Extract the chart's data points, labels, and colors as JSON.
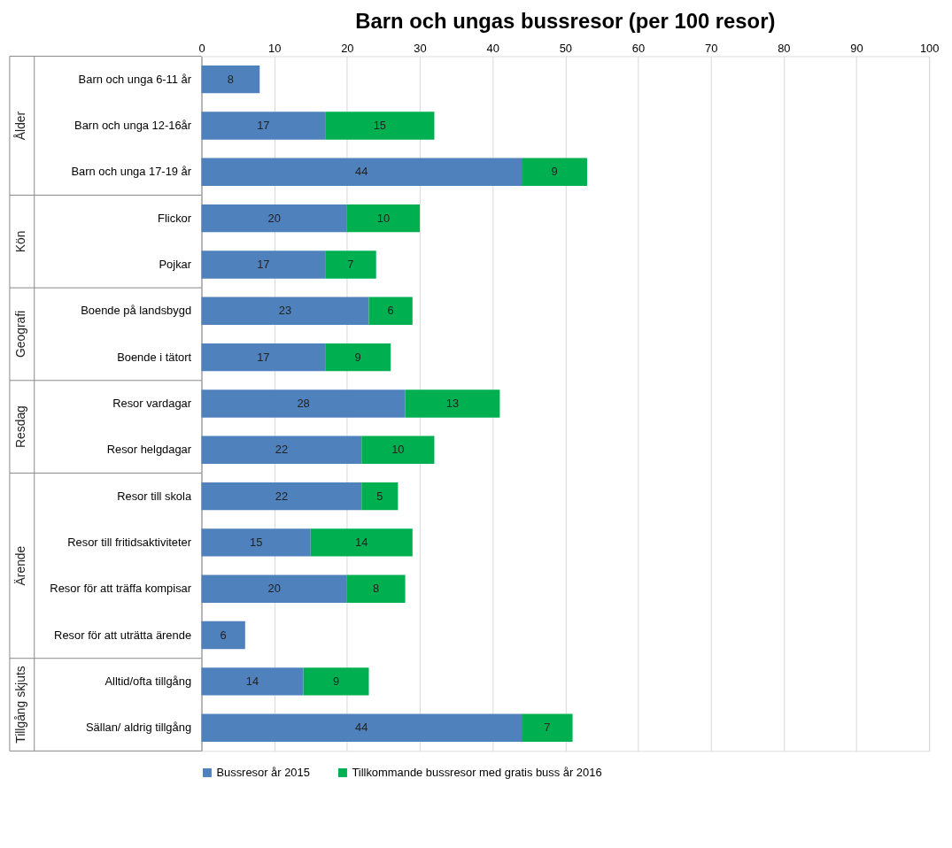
{
  "chart_data": {
    "type": "bar",
    "orientation": "horizontal",
    "stacked": true,
    "title": "Barn och ungas bussresor (per 100 resor)",
    "categories": [
      "Barn och unga 6-11 år",
      "Barn och unga 12-16år",
      "Barn och unga 17-19 år",
      "Flickor",
      "Pojkar",
      "Boende på landsbygd",
      "Boende i tätort",
      "Resor vardagar",
      "Resor helgdagar",
      "Resor till skola",
      "Resor till fritidsaktiviteter",
      "Resor för att träffa kompisar",
      "Resor för att uträtta ärende",
      "Alltid/ofta tillgång",
      "Sällan/ aldrig tillgång"
    ],
    "series": [
      {
        "name": "Bussresor år 2015",
        "color": "#4f81bd",
        "values": [
          8,
          17,
          44,
          20,
          17,
          23,
          17,
          28,
          22,
          22,
          15,
          20,
          6,
          14,
          44
        ]
      },
      {
        "name": "Tillkommande bussresor med gratis buss år 2016",
        "color": "#00b050",
        "values": [
          null,
          15,
          9,
          10,
          7,
          6,
          9,
          13,
          10,
          5,
          14,
          8,
          null,
          9,
          7
        ]
      }
    ],
    "xlim": [
      0,
      100
    ],
    "xticks": [
      0,
      10,
      20,
      30,
      40,
      50,
      60,
      70,
      80,
      90,
      100
    ],
    "grid": "x",
    "legend": "bottom",
    "data_labels": true,
    "annotations": [
      "Ålder",
      "Kön",
      "Geografi",
      "Resdag",
      "Ärende",
      "Tillgång skjuts"
    ]
  }
}
